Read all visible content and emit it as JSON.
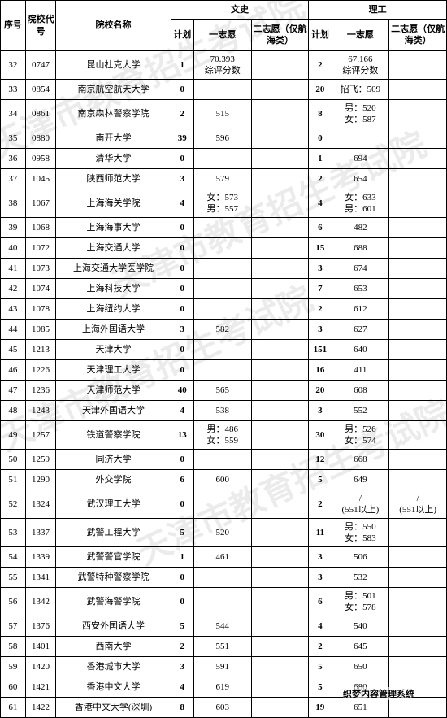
{
  "header": {
    "seq": "序号",
    "code": "院校代号",
    "name": "院校名称",
    "liberal": "文史",
    "science": "理工",
    "plan": "计划",
    "first": "一志愿",
    "second": "二志愿（仅航海类）"
  },
  "footer": "织梦内容管理系统",
  "watermarks": [
    "天津市教育招生考试院",
    "天津市教育招生考试院",
    "天津市教育招生考试院",
    "天津市教育招生考试院"
  ],
  "rows": [
    {
      "seq": "32",
      "code": "0747",
      "name": "昆山杜克大学",
      "lp": "1",
      "lf": "70.393\n综评分数",
      "ls": "",
      "sp": "2",
      "sf": "67.166\n综评分数",
      "ss": "",
      "tall": true
    },
    {
      "seq": "33",
      "code": "0854",
      "name": "南京航空航天大学",
      "lp": "0",
      "lf": "",
      "ls": "",
      "sp": "20",
      "sf": "招飞：509",
      "ss": ""
    },
    {
      "seq": "34",
      "code": "0861",
      "name": "南京森林警察学院",
      "lp": "2",
      "lf": "515",
      "ls": "",
      "sp": "8",
      "sf": "男：520\n女：587",
      "ss": "",
      "tall": true
    },
    {
      "seq": "35",
      "code": "0880",
      "name": "南开大学",
      "lp": "39",
      "lf": "596",
      "ls": "",
      "sp": "0",
      "sf": "",
      "ss": ""
    },
    {
      "seq": "36",
      "code": "0958",
      "name": "清华大学",
      "lp": "0",
      "lf": "",
      "ls": "",
      "sp": "1",
      "sf": "694",
      "ss": ""
    },
    {
      "seq": "37",
      "code": "1045",
      "name": "陕西师范大学",
      "lp": "3",
      "lf": "579",
      "ls": "",
      "sp": "2",
      "sf": "654",
      "ss": ""
    },
    {
      "seq": "38",
      "code": "1067",
      "name": "上海海关学院",
      "lp": "4",
      "lf": "女：573\n男：557",
      "ls": "",
      "sp": "4",
      "sf": "女：633\n男：601",
      "ss": "",
      "tall": true
    },
    {
      "seq": "39",
      "code": "1068",
      "name": "上海海事大学",
      "lp": "0",
      "lf": "",
      "ls": "",
      "sp": "6",
      "sf": "482",
      "ss": ""
    },
    {
      "seq": "40",
      "code": "1072",
      "name": "上海交通大学",
      "lp": "0",
      "lf": "",
      "ls": "",
      "sp": "15",
      "sf": "688",
      "ss": ""
    },
    {
      "seq": "41",
      "code": "1073",
      "name": "上海交通大学医学院",
      "lp": "0",
      "lf": "",
      "ls": "",
      "sp": "3",
      "sf": "674",
      "ss": ""
    },
    {
      "seq": "42",
      "code": "1074",
      "name": "上海科技大学",
      "lp": "0",
      "lf": "",
      "ls": "",
      "sp": "7",
      "sf": "653",
      "ss": ""
    },
    {
      "seq": "43",
      "code": "1078",
      "name": "上海纽约大学",
      "lp": "0",
      "lf": "",
      "ls": "",
      "sp": "2",
      "sf": "612",
      "ss": ""
    },
    {
      "seq": "44",
      "code": "1085",
      "name": "上海外国语大学",
      "lp": "3",
      "lf": "582",
      "ls": "",
      "sp": "3",
      "sf": "627",
      "ss": ""
    },
    {
      "seq": "45",
      "code": "1213",
      "name": "天津大学",
      "lp": "0",
      "lf": "",
      "ls": "",
      "sp": "151",
      "sf": "640",
      "ss": ""
    },
    {
      "seq": "46",
      "code": "1226",
      "name": "天津理工大学",
      "lp": "0",
      "lf": "",
      "ls": "",
      "sp": "16",
      "sf": "411",
      "ss": ""
    },
    {
      "seq": "47",
      "code": "1236",
      "name": "天津师范大学",
      "lp": "40",
      "lf": "565",
      "ls": "",
      "sp": "20",
      "sf": "608",
      "ss": ""
    },
    {
      "seq": "48",
      "code": "1243",
      "name": "天津外国语大学",
      "lp": "4",
      "lf": "538",
      "ls": "",
      "sp": "3",
      "sf": "552",
      "ss": ""
    },
    {
      "seq": "49",
      "code": "1257",
      "name": "铁道警察学院",
      "lp": "13",
      "lf": "男：486\n女：559",
      "ls": "",
      "sp": "30",
      "sf": "男：526\n女：574",
      "ss": "",
      "tall": true
    },
    {
      "seq": "50",
      "code": "1259",
      "name": "同济大学",
      "lp": "0",
      "lf": "",
      "ls": "",
      "sp": "12",
      "sf": "668",
      "ss": ""
    },
    {
      "seq": "51",
      "code": "1290",
      "name": "外交学院",
      "lp": "6",
      "lf": "600",
      "ls": "",
      "sp": "5",
      "sf": "649",
      "ss": ""
    },
    {
      "seq": "52",
      "code": "1324",
      "name": "武汉理工大学",
      "lp": "0",
      "lf": "",
      "ls": "",
      "sp": "2",
      "sf": "/\n(551以上)",
      "ss": "/\n(551以上)",
      "tall": true
    },
    {
      "seq": "53",
      "code": "1337",
      "name": "武警工程大学",
      "lp": "5",
      "lf": "520",
      "ls": "",
      "sp": "11",
      "sf": "男：550\n女：583",
      "ss": "",
      "tall": true
    },
    {
      "seq": "54",
      "code": "1339",
      "name": "武警警官学院",
      "lp": "1",
      "lf": "461",
      "ls": "",
      "sp": "3",
      "sf": "506",
      "ss": ""
    },
    {
      "seq": "55",
      "code": "1341",
      "name": "武警特种警察学院",
      "lp": "0",
      "lf": "",
      "ls": "",
      "sp": "3",
      "sf": "532",
      "ss": ""
    },
    {
      "seq": "56",
      "code": "1342",
      "name": "武警海警学院",
      "lp": "0",
      "lf": "",
      "ls": "",
      "sp": "6",
      "sf": "男：501\n女：578",
      "ss": "",
      "tall": true
    },
    {
      "seq": "57",
      "code": "1376",
      "name": "西安外国语大学",
      "lp": "5",
      "lf": "544",
      "ls": "",
      "sp": "4",
      "sf": "540",
      "ss": ""
    },
    {
      "seq": "58",
      "code": "1401",
      "name": "西南大学",
      "lp": "2",
      "lf": "551",
      "ls": "",
      "sp": "2",
      "sf": "645",
      "ss": ""
    },
    {
      "seq": "59",
      "code": "1420",
      "name": "香港城市大学",
      "lp": "3",
      "lf": "591",
      "ls": "",
      "sp": "5",
      "sf": "650",
      "ss": ""
    },
    {
      "seq": "60",
      "code": "1421",
      "name": "香港中文大学",
      "lp": "4",
      "lf": "619",
      "ls": "",
      "sp": "5",
      "sf": "680",
      "ss": ""
    },
    {
      "seq": "61",
      "code": "1422",
      "name": "香港中文大学(深圳)",
      "lp": "8",
      "lf": "603",
      "ls": "",
      "sp": "19",
      "sf": "651",
      "ss": ""
    }
  ]
}
